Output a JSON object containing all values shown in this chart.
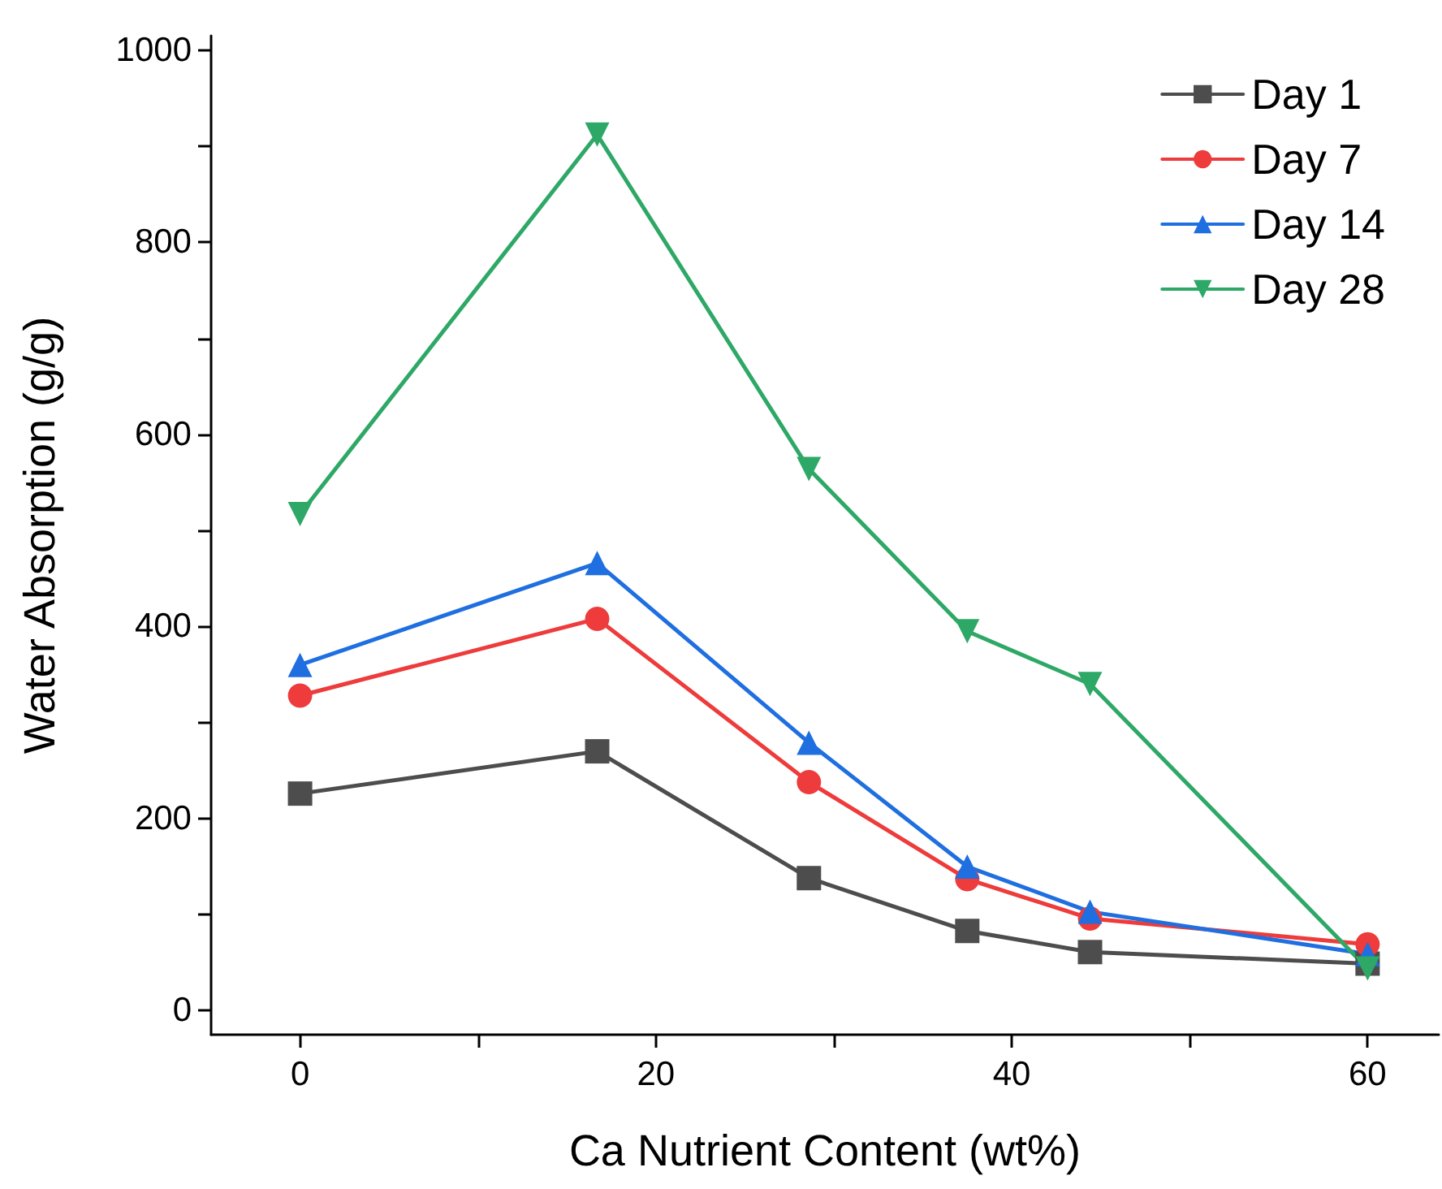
{
  "chart_data": {
    "type": "line",
    "xlabel": "Ca Nutrient Content (wt%)",
    "ylabel": "Water Absorption (g/g)",
    "xlim": [
      -5,
      64
    ],
    "xticks": [
      0,
      {
        "value": 10,
        "label": null
      },
      20,
      {
        "value": 30,
        "label": null
      },
      40,
      {
        "value": 50,
        "label": null
      },
      60
    ],
    "ylim": [
      -25,
      1015
    ],
    "yticks": [
      0,
      {
        "value": 100,
        "label": null
      },
      200,
      {
        "value": 300,
        "label": null
      },
      400,
      {
        "value": 500,
        "label": null
      },
      600,
      {
        "value": 700,
        "label": null
      },
      800,
      {
        "value": 900,
        "label": null
      },
      1000
    ],
    "grid": false,
    "legend": "top right",
    "line_style": "solid",
    "series": [
      {
        "name": "Day 1",
        "color": "#4d4d4d",
        "marker": "square",
        "x": [
          0,
          16.7,
          28.6,
          37.5,
          44.4,
          60
        ],
        "values": [
          226,
          270,
          138,
          83,
          61,
          49
        ]
      },
      {
        "name": "Day 7",
        "color": "#ee3b3b",
        "marker": "circle",
        "x": [
          0,
          16.7,
          28.6,
          37.5,
          44.4,
          60
        ],
        "values": [
          328,
          408,
          238,
          137,
          96,
          69
        ]
      },
      {
        "name": "Day 14",
        "color": "#1f6fe0",
        "marker": "triangle",
        "x": [
          0,
          16.7,
          28.6,
          37.5,
          44.4,
          60
        ],
        "values": [
          360,
          466,
          279,
          150,
          103,
          59
        ]
      },
      {
        "name": "Day 28",
        "color": "#2ea866",
        "marker": "triangle-down",
        "x": [
          0,
          16.7,
          28.6,
          37.5,
          44.4,
          60
        ],
        "values": [
          517,
          912,
          564,
          395,
          340,
          44
        ]
      }
    ]
  }
}
